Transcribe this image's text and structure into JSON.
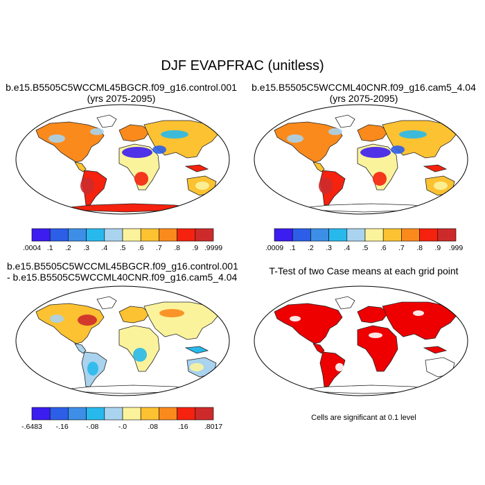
{
  "title": "DJF EVAPFRAC (unitless)",
  "panels": [
    {
      "id": "case1",
      "title_lines": [
        "b.e15.B5505C5WCCML45BGCR.f09_g16.control.001",
        "(yrs 2075-2095)"
      ],
      "colorbar": {
        "colors": [
          "#3c1df0",
          "#2c5ee8",
          "#3d8ee6",
          "#28b9ec",
          "#a9d3ee",
          "#fbf39c",
          "#fcc232",
          "#fb8a1c",
          "#f4220e",
          "#cd2b2b"
        ],
        "labels": [
          ".0004",
          ".1",
          ".2",
          ".3",
          ".4",
          ".5",
          ".6",
          ".7",
          ".8",
          ".9",
          ".9999"
        ]
      }
    },
    {
      "id": "case2",
      "title_lines": [
        "b.e15.B5505C5WCCML40CNR.f09_g16.cam5_4.04",
        "(yrs 2075-2095)"
      ],
      "colorbar": {
        "colors": [
          "#3c1df0",
          "#2c5ee8",
          "#3d8ee6",
          "#28b9ec",
          "#a9d3ee",
          "#fbf39c",
          "#fcc232",
          "#fb8a1c",
          "#f4220e",
          "#cd2b2b"
        ],
        "labels": [
          ".0009",
          ".1",
          ".2",
          ".3",
          ".4",
          ".5",
          ".6",
          ".7",
          ".8",
          ".9",
          ".999"
        ]
      }
    },
    {
      "id": "diff",
      "title_lines": [
        "b.e15.B5505C5WCCML45BGCR.f09_g16.control.001",
        "- b.e15.B5505C5WCCML40CNR.f09_g16.cam5_4.04"
      ],
      "colorbar": {
        "colors": [
          "#3c1df0",
          "#2c5ee8",
          "#3d8ee6",
          "#28b9ec",
          "#a9d3ee",
          "#fbf39c",
          "#fcc232",
          "#fb8a1c",
          "#f4220e",
          "#cd2b2b"
        ],
        "labels": [
          "-.6483",
          "-.16",
          "-.08",
          "-.0",
          ".08",
          ".16",
          ".8017"
        ]
      }
    },
    {
      "id": "ttest",
      "title_lines": [
        "T-Test of two Case means at each grid point"
      ],
      "note": "Cells are significant at 0.1 level"
    }
  ]
}
